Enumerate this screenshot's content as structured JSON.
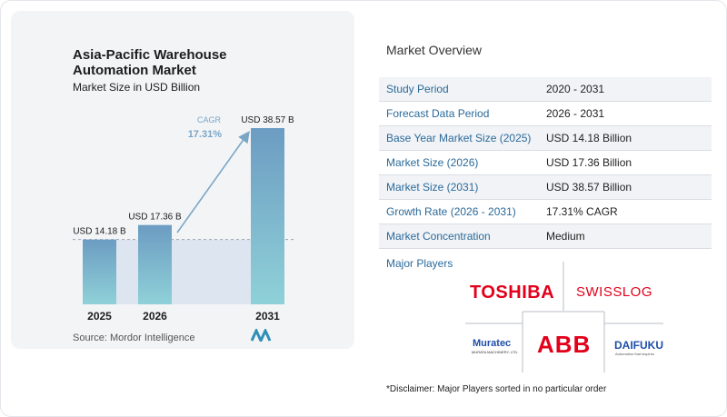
{
  "chart_data": {
    "type": "bar",
    "title": "Asia-Pacific Warehouse Automation Market",
    "subtitle": "Market Size in USD Billion",
    "categories": [
      "2025",
      "2026",
      "2031"
    ],
    "values": [
      14.18,
      17.36,
      38.57
    ],
    "value_labels": [
      "USD 14.18 B",
      "USD 17.36 B",
      "USD 38.57 B"
    ],
    "cagr_label": "CAGR",
    "cagr_value": "17.31%",
    "colors": {
      "bar_top": "#6c9cc2",
      "bar_bottom": "#8fd1d8",
      "baseline_fill": "#dde6f0",
      "arrow": "#7aa6c6"
    }
  },
  "source": "Source:  Mordor Intelligence",
  "overview": {
    "title": "Market Overview",
    "rows": [
      {
        "key": "Study Period",
        "value": "2020 - 2031"
      },
      {
        "key": "Forecast Data Period",
        "value": "2026 - 2031"
      },
      {
        "key": "Base Year Market Size (2025)",
        "value": "USD 14.18 Billion"
      },
      {
        "key": "Market Size (2026)",
        "value": "USD 17.36 Billion"
      },
      {
        "key": "Market Size (2031)",
        "value": "USD 38.57 Billion"
      },
      {
        "key": "Growth Rate (2026 - 2031)",
        "value": "17.31% CAGR"
      },
      {
        "key": "Market Concentration",
        "value": "Medium"
      }
    ]
  },
  "players": {
    "title": "Major Players",
    "toshiba": "TOSHIBA",
    "swisslog": "SWISSLOG",
    "abb": "ABB",
    "daifuku": "DAIFUKU",
    "daifuku_sub": "Automation that inspires",
    "muratec": "Muratec",
    "muratec_sub": "MURATA MACHINERY, LTD."
  },
  "disclaimer": "*Disclaimer: Major Players sorted in no particular order"
}
